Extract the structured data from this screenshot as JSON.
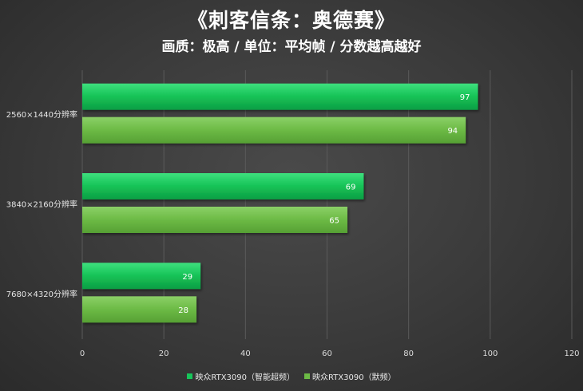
{
  "chart_data": {
    "type": "bar",
    "orientation": "horizontal",
    "title": "《刺客信条：奥德赛》",
    "subtitle": "画质：极高 / 单位：平均帧 / 分数越高越好",
    "categories": [
      "2560×1440分辨率",
      "3840×2160分辨率",
      "7680×4320分辨率"
    ],
    "series": [
      {
        "name": "映众RTX3090（智能超频）",
        "values": [
          97,
          69,
          29
        ],
        "color": "#17c55a"
      },
      {
        "name": "映众RTX3090（默频）",
        "values": [
          94,
          65,
          28
        ],
        "color": "#6cba45"
      }
    ],
    "xlim": [
      0,
      120
    ],
    "xticks": [
      0,
      20,
      40,
      60,
      80,
      100,
      120
    ],
    "grid": true,
    "legend_position": "bottom"
  }
}
